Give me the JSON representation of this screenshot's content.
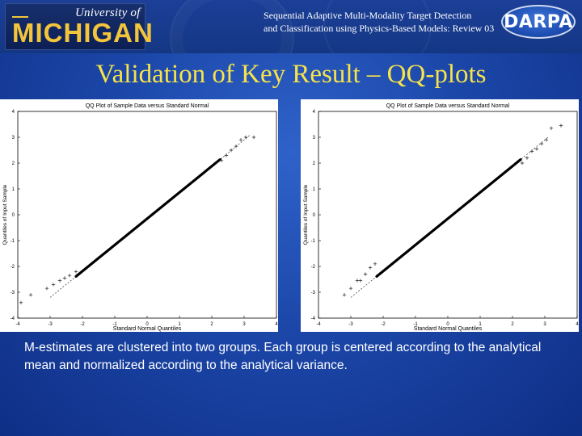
{
  "header": {
    "logo_top": "University of",
    "logo_main": "MICHIGAN",
    "line1": "Sequential Adaptive Multi-Modality Target Detection",
    "line2": "and Classification using Physics-Based Models: Review 03",
    "darpa": "DARPA"
  },
  "slide_title": "Validation of Key Result – QQ-plots",
  "caption": "M-estimates are clustered into two groups. Each group is centered according to the analytical mean and normalized according to the analytical variance.",
  "colors": {
    "title": "#f7e34a",
    "logo": "#f3c53a",
    "background": "#1b46a8"
  },
  "chart_data": [
    {
      "type": "scatter",
      "title": "QQ Plot of Sample Data versus Standard Normal",
      "xlabel": "Standard Normal Quantiles",
      "ylabel": "Quantiles of Input Sample",
      "xlim": [
        -4,
        4
      ],
      "ylim": [
        -4,
        4
      ],
      "xticks": [
        "-4",
        "-3",
        "-2",
        "-1",
        "0",
        "1",
        "2",
        "3",
        "4"
      ],
      "yticks": [
        "-4",
        "-3",
        "-2",
        "-1",
        "0",
        "1",
        "2",
        "3",
        "4"
      ],
      "reference_line": {
        "x": [
          -3.0,
          3.2
        ],
        "y": [
          -3.2,
          3.1
        ]
      },
      "series": [
        {
          "x": [
            -3.9,
            -3.6,
            -3.1,
            -2.9,
            -2.7,
            -2.55,
            -2.4,
            -2.2,
            2.3,
            2.45,
            2.6,
            2.75,
            2.9,
            3.05,
            3.3
          ],
          "y": [
            -3.4,
            -3.1,
            -2.85,
            -2.7,
            -2.55,
            -2.45,
            -2.35,
            -2.2,
            2.1,
            2.3,
            2.5,
            2.65,
            2.9,
            3.0,
            3.0
          ]
        }
      ]
    },
    {
      "type": "scatter",
      "title": "QQ Plot of Sample Data versus Standard Normal",
      "xlabel": "Standard Normal Quantiles",
      "ylabel": "Quantiles of Input Sample",
      "xlim": [
        -4,
        4
      ],
      "ylim": [
        -4,
        4
      ],
      "xticks": [
        "-4",
        "-3",
        "-2",
        "-1",
        "0",
        "1",
        "2",
        "3",
        "4"
      ],
      "yticks": [
        "-4",
        "-3",
        "-2",
        "-1",
        "0",
        "1",
        "2",
        "3",
        "4"
      ],
      "reference_line": {
        "x": [
          -3.0,
          3.1
        ],
        "y": [
          -3.2,
          3.0
        ]
      },
      "series": [
        {
          "x": [
            -3.2,
            -3.0,
            -2.8,
            -2.7,
            -2.55,
            -2.4,
            -2.25,
            2.3,
            2.45,
            2.6,
            2.75,
            2.9,
            3.05,
            3.2,
            3.5
          ],
          "y": [
            -3.1,
            -2.85,
            -2.55,
            -2.55,
            -2.3,
            -2.05,
            -1.9,
            2.0,
            2.2,
            2.45,
            2.55,
            2.75,
            2.9,
            3.35,
            3.45
          ]
        }
      ]
    }
  ]
}
